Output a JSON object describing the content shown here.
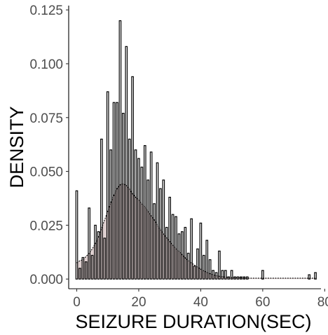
{
  "chart_data": {
    "type": "bar",
    "title": "",
    "xlabel": "SEIZURE DURATION(SEC)",
    "ylabel": "DENSITY",
    "xlim": [
      -2.6,
      78.8
    ],
    "ylim": [
      -0.0045,
      0.127
    ],
    "x_ticks": [
      0,
      20,
      40,
      60,
      80
    ],
    "y_ticks": [
      0.0,
      0.025,
      0.05,
      0.075,
      0.1,
      0.125
    ],
    "x_tick_labels": [
      "0",
      "20",
      "40",
      "60",
      "80"
    ],
    "y_tick_labels": [
      "0.000",
      "0.025",
      "0.050",
      "0.075",
      "0.100",
      "0.125"
    ],
    "grid": false,
    "legend": "none",
    "bin_width": 0.55,
    "histogram": {
      "x": [
        0,
        1,
        2,
        3,
        4,
        5,
        6,
        7,
        8,
        9,
        10,
        11,
        12,
        13,
        14,
        15,
        16,
        17,
        18,
        19,
        20,
        21,
        22,
        23,
        24,
        25,
        26,
        27,
        28,
        29,
        30,
        31,
        32,
        33,
        34,
        35,
        36,
        37,
        38,
        39,
        40,
        41,
        42,
        43,
        44,
        45,
        46,
        47,
        48,
        49,
        50,
        51,
        52,
        53,
        54,
        55,
        60,
        75,
        77
      ],
      "values": [
        0.041,
        0.005,
        0.01,
        0.008,
        0.033,
        0.011,
        0.025,
        0.022,
        0.065,
        0.019,
        0.087,
        0.06,
        0.082,
        0.082,
        0.12,
        0.077,
        0.108,
        0.065,
        0.094,
        0.06,
        0.056,
        0.052,
        0.062,
        0.046,
        0.059,
        0.035,
        0.054,
        0.042,
        0.046,
        0.024,
        0.038,
        0.03,
        0.029,
        0.021,
        0.022,
        0.024,
        0.012,
        0.028,
        0.006,
        0.014,
        0.026,
        0.011,
        0.018,
        0.009,
        0.004,
        0.003,
        0.013,
        0.004,
        0.004,
        0.001,
        0.004,
        0.001,
        0.001,
        0.001,
        0.001,
        0.001,
        0.004,
        0.002,
        0.003
      ],
      "outline_color": "#000000",
      "fill_color": "#ffffff"
    },
    "density_curve": {
      "x": [
        0,
        1,
        2,
        3,
        4,
        5,
        6,
        7,
        8,
        9,
        10,
        11,
        12,
        13,
        14,
        15,
        16,
        17,
        18,
        19,
        20,
        21,
        22,
        23,
        24,
        25,
        26,
        27,
        28,
        29,
        30,
        31,
        32,
        33,
        34,
        35,
        36,
        37,
        38,
        39,
        40,
        41,
        42,
        43,
        44,
        45,
        46,
        47,
        48,
        49,
        50,
        52,
        54,
        56,
        58,
        60,
        65,
        70,
        75,
        77
      ],
      "values": [
        0.0075,
        0.0085,
        0.009,
        0.0105,
        0.012,
        0.014,
        0.0165,
        0.0195,
        0.0235,
        0.0275,
        0.0315,
        0.0355,
        0.039,
        0.042,
        0.0438,
        0.0442,
        0.0435,
        0.042,
        0.0395,
        0.038,
        0.0368,
        0.035,
        0.0335,
        0.0315,
        0.0295,
        0.0275,
        0.025,
        0.023,
        0.021,
        0.0192,
        0.0175,
        0.0158,
        0.0142,
        0.0128,
        0.0113,
        0.0098,
        0.0086,
        0.0075,
        0.0065,
        0.0055,
        0.0046,
        0.0038,
        0.0031,
        0.0025,
        0.002,
        0.0016,
        0.0013,
        0.0011,
        0.0009,
        0.0008,
        0.0007,
        0.0006,
        0.0005,
        0.0004,
        0.0004,
        0.0004,
        0.0004,
        0.0004,
        0.0004,
        0.0004
      ],
      "fill_color": "#6b2a2a",
      "fill_opacity": 0.22,
      "line_color": "#000000"
    }
  }
}
